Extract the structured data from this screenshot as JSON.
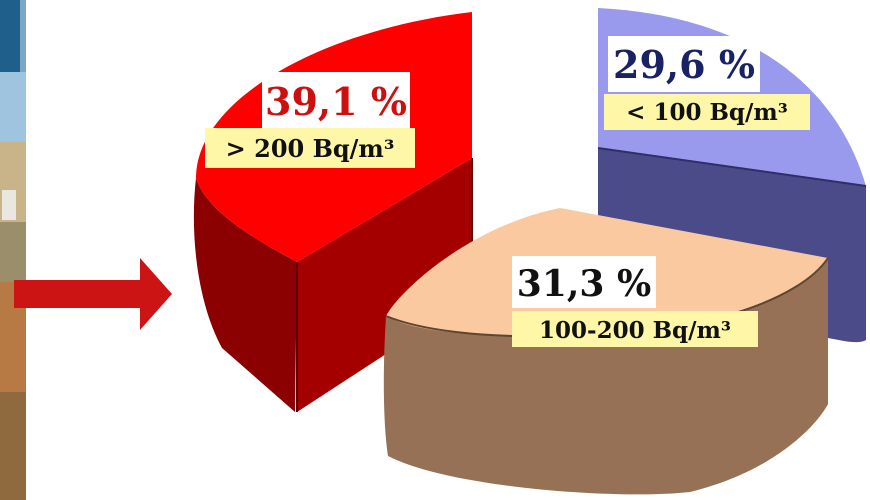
{
  "chart_data": {
    "type": "pie",
    "three_d": true,
    "exploded": true,
    "slices": [
      {
        "percent_label": "39,1 %",
        "range_label": "> 200 Bq/m³",
        "value": 39.1,
        "top_color": "#ff0000",
        "side_color": "#8b0000",
        "text_color": "#cc1010"
      },
      {
        "percent_label": "29,6 %",
        "range_label": "< 100 Bq/m³",
        "value": 29.6,
        "top_color": "#9999ee",
        "side_color": "#4b4b8a",
        "text_color": "#1a2266"
      },
      {
        "percent_label": "31,3 %",
        "range_label": "100-200 Bq/m³",
        "value": 31.3,
        "top_color": "#fac9a0",
        "side_color": "#967155",
        "text_color": "#111111"
      }
    ],
    "label_box_color": "#ffffff",
    "range_box_color": "#fff7a8"
  },
  "decor": {
    "arrow_color": "#cc1414",
    "photo_panel": "landscape-photo"
  }
}
